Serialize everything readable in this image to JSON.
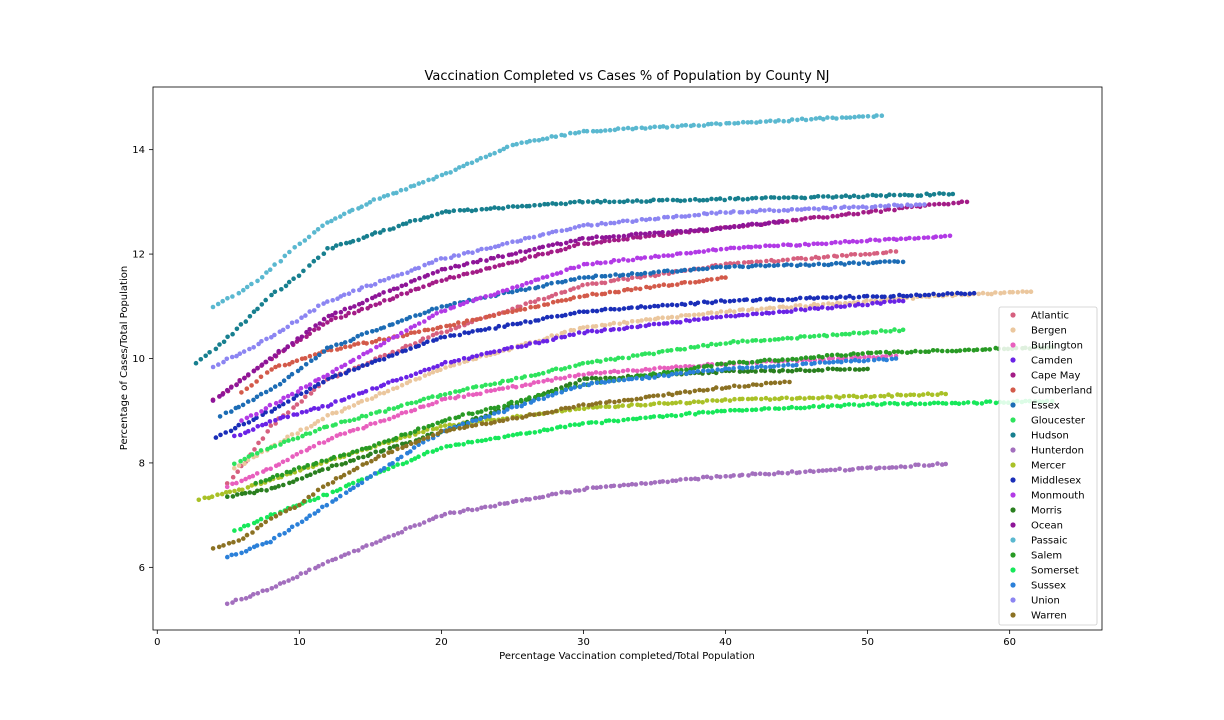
{
  "chart_data": {
    "type": "scatter",
    "title": "Vaccination Completed vs Cases % of Population by County NJ",
    "xlabel": "Percentage Vaccination completed/Total Population",
    "ylabel": "Percentage of Cases/Total Population",
    "xlim": [
      -0.3,
      66.5
    ],
    "ylim": [
      4.8,
      15.2
    ],
    "xticks": [
      0,
      10,
      20,
      30,
      40,
      50,
      60
    ],
    "yticks": [
      6,
      8,
      10,
      12,
      14
    ],
    "grid": false,
    "legend_position": "lower-right",
    "series": [
      {
        "name": "Atlantic",
        "color": "#d6607f",
        "x": [
          5,
          8,
          12,
          20,
          30,
          40,
          52
        ],
        "y": [
          7.6,
          8.7,
          9.6,
          10.5,
          11.4,
          11.8,
          12.05
        ]
      },
      {
        "name": "Bergen",
        "color": "#ebc79e",
        "x": [
          5.5,
          8,
          12,
          20,
          30,
          40,
          55,
          61.5
        ],
        "y": [
          7.9,
          8.3,
          8.9,
          9.8,
          10.6,
          10.9,
          11.2,
          11.28
        ]
      },
      {
        "name": "Burlington",
        "color": "#e85fbe",
        "x": [
          5,
          8,
          12,
          20,
          30,
          40,
          52
        ],
        "y": [
          7.55,
          7.9,
          8.45,
          9.2,
          9.7,
          9.9,
          10.05
        ]
      },
      {
        "name": "Camden",
        "color": "#6a23e6",
        "x": [
          5.5,
          8,
          12,
          20,
          30,
          40,
          52.5
        ],
        "y": [
          8.5,
          8.8,
          9.1,
          9.9,
          10.5,
          10.8,
          11.1
        ]
      },
      {
        "name": "Cape May",
        "color": "#a31c87",
        "x": [
          4,
          8,
          12,
          20,
          30,
          40,
          45,
          55,
          57
        ],
        "y": [
          9.2,
          10.0,
          10.7,
          11.5,
          12.2,
          12.5,
          12.65,
          12.95,
          13.0
        ]
      },
      {
        "name": "Cumberland",
        "color": "#d35a4a",
        "x": [
          6,
          8,
          12,
          20,
          30,
          40
        ],
        "y": [
          9.35,
          9.8,
          10.15,
          10.6,
          11.2,
          11.55
        ]
      },
      {
        "name": "Essex",
        "color": "#1c6cb5",
        "x": [
          4.5,
          8,
          12,
          20,
          30,
          40,
          52.5
        ],
        "y": [
          8.9,
          9.4,
          10.2,
          11.0,
          11.55,
          11.75,
          11.85
        ]
      },
      {
        "name": "Gloucester",
        "color": "#2ee35d",
        "x": [
          5.5,
          8,
          12,
          20,
          30,
          40,
          52.5
        ],
        "y": [
          8.0,
          8.3,
          8.7,
          9.3,
          9.9,
          10.3,
          10.55
        ]
      },
      {
        "name": "Hudson",
        "color": "#177f8f",
        "x": [
          2.8,
          5,
          8,
          10,
          12,
          20,
          30,
          40,
          56
        ],
        "y": [
          9.9,
          10.4,
          11.2,
          11.6,
          12.1,
          12.8,
          13.0,
          13.05,
          13.15
        ]
      },
      {
        "name": "Hunterdon",
        "color": "#a36fbe",
        "x": [
          5,
          8,
          12,
          20,
          30,
          40,
          55.5
        ],
        "y": [
          5.3,
          5.6,
          6.1,
          7.0,
          7.5,
          7.75,
          7.98
        ]
      },
      {
        "name": "Mercer",
        "color": "#a9c127",
        "x": [
          3,
          6,
          10,
          15,
          20,
          30,
          40,
          55.5
        ],
        "y": [
          7.3,
          7.5,
          7.85,
          8.3,
          8.7,
          9.05,
          9.2,
          9.32
        ]
      },
      {
        "name": "Middlesex",
        "color": "#1a2eb8",
        "x": [
          4.2,
          8,
          12,
          20,
          30,
          40,
          57.5
        ],
        "y": [
          8.5,
          9.0,
          9.6,
          10.4,
          10.9,
          11.1,
          11.25
        ]
      },
      {
        "name": "Monmouth",
        "color": "#b23ae6",
        "x": [
          6,
          8,
          12,
          20,
          30,
          40,
          55.8
        ],
        "y": [
          8.8,
          9.1,
          9.7,
          10.9,
          11.8,
          12.1,
          12.35
        ]
      },
      {
        "name": "Morris",
        "color": "#2a7f1f",
        "x": [
          5,
          8,
          12,
          20,
          30,
          40,
          50
        ],
        "y": [
          7.35,
          7.5,
          7.9,
          8.6,
          9.6,
          9.75,
          9.8
        ]
      },
      {
        "name": "Ocean",
        "color": "#8e1598",
        "x": [
          4,
          8,
          12,
          20,
          30,
          40,
          44
        ],
        "y": [
          9.2,
          10.0,
          10.8,
          11.7,
          12.3,
          12.5,
          12.63
        ]
      },
      {
        "name": "Passaic",
        "color": "#5ab8d0",
        "x": [
          4,
          6,
          8,
          10,
          12,
          15,
          20,
          25,
          30,
          40,
          51
        ],
        "y": [
          11.0,
          11.3,
          11.7,
          12.2,
          12.6,
          13.0,
          13.5,
          14.1,
          14.35,
          14.5,
          14.65
        ]
      },
      {
        "name": "Salem",
        "color": "#289a24",
        "x": [
          7,
          10,
          15,
          20,
          30,
          40,
          50,
          63
        ],
        "y": [
          7.6,
          7.9,
          8.3,
          8.8,
          9.5,
          9.9,
          10.1,
          10.22
        ]
      },
      {
        "name": "Somerset",
        "color": "#17e85a",
        "x": [
          5.5,
          8,
          12,
          20,
          30,
          40,
          50,
          63
        ],
        "y": [
          6.7,
          7.0,
          7.4,
          8.3,
          8.75,
          9.0,
          9.12,
          9.18
        ]
      },
      {
        "name": "Sussex",
        "color": "#2b80d9",
        "x": [
          5,
          8,
          12,
          20,
          30,
          40,
          52
        ],
        "y": [
          6.2,
          6.5,
          7.2,
          8.6,
          9.5,
          9.8,
          10.0
        ]
      },
      {
        "name": "Union",
        "color": "#8c85f2",
        "x": [
          4,
          8,
          12,
          20,
          30,
          40,
          54
        ],
        "y": [
          9.85,
          10.4,
          11.1,
          11.9,
          12.55,
          12.8,
          12.95
        ]
      },
      {
        "name": "Warren",
        "color": "#8b7123",
        "x": [
          4,
          6,
          8,
          10,
          12,
          15,
          20,
          30,
          40,
          44.5
        ],
        "y": [
          6.35,
          6.55,
          6.95,
          7.2,
          7.6,
          8.05,
          8.6,
          9.1,
          9.45,
          9.55
        ]
      }
    ]
  }
}
